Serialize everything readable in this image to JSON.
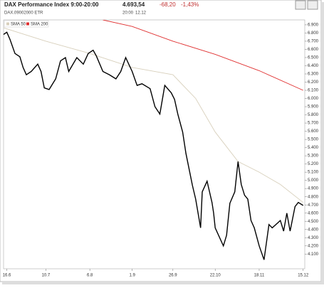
{
  "header": {
    "title": "DAX Performance Index 9:00-20:00",
    "price": "4.693,54",
    "change": "-68,20",
    "change_pct": "-1,43%",
    "symbol": "DAX.09002000 ETR",
    "time": "20:00",
    "date": "12.12"
  },
  "chart_data": {
    "type": "line",
    "xlim": [
      "14.6",
      "16.12"
    ],
    "xticks": [
      "16.6",
      "10.7",
      "6.8",
      "1.9",
      "26.9",
      "22.10",
      "18.11",
      "15.12"
    ],
    "ylim": [
      3920,
      6960
    ],
    "yticks": [
      {
        "value": 4100,
        "label": "4.100"
      },
      {
        "value": 4200,
        "label": "4.200"
      },
      {
        "value": 4300,
        "label": "4.300"
      },
      {
        "value": 4400,
        "label": "4.400"
      },
      {
        "value": 4500,
        "label": "4.500"
      },
      {
        "value": 4600,
        "label": "4.600"
      },
      {
        "value": 4700,
        "label": "4.700"
      },
      {
        "value": 4800,
        "label": "4.800"
      },
      {
        "value": 4900,
        "label": "4.900"
      },
      {
        "value": 5000,
        "label": "5.000"
      },
      {
        "value": 5100,
        "label": "5.100"
      },
      {
        "value": 5200,
        "label": "5.200"
      },
      {
        "value": 5300,
        "label": "5.300"
      },
      {
        "value": 5400,
        "label": "5.400"
      },
      {
        "value": 5500,
        "label": "5.500"
      },
      {
        "value": 5600,
        "label": "5.600"
      },
      {
        "value": 5700,
        "label": "5.700"
      },
      {
        "value": 5800,
        "label": "5.800"
      },
      {
        "value": 5900,
        "label": "5.900"
      },
      {
        "value": 6000,
        "label": "6.000"
      },
      {
        "value": 6100,
        "label": "6.100"
      },
      {
        "value": 6200,
        "label": "6.200"
      },
      {
        "value": 6300,
        "label": "6.300"
      },
      {
        "value": 6400,
        "label": "6.400"
      },
      {
        "value": 6500,
        "label": "6.500"
      },
      {
        "value": 6600,
        "label": "6.600"
      },
      {
        "value": 6700,
        "label": "6.700"
      },
      {
        "value": 6800,
        "label": "6.800"
      },
      {
        "value": 6900,
        "label": "6.900"
      }
    ],
    "grid": false,
    "legend": "top-left",
    "series": [
      {
        "name": "DAX",
        "color": "#000000",
        "x": [
          "13.6",
          "16.6",
          "18.6",
          "21.6",
          "24.6",
          "26.6",
          "28.6",
          "1.7",
          "5.7",
          "7.7",
          "9.7",
          "12.7",
          "16.7",
          "19.7",
          "22.7",
          "24.7",
          "29.7",
          "2.8",
          "5.8",
          "8.8",
          "10.8",
          "14.8",
          "18.8",
          "22.8",
          "25.8",
          "28.8",
          "1.9",
          "4.9",
          "7.9",
          "12.9",
          "15.9",
          "18.9",
          "21.9",
          "25.9",
          "27.9",
          "29.9",
          "2.10",
          "4.10",
          "8.10",
          "10.10",
          "13.10",
          "14.10",
          "17.10",
          "20.10",
          "21.10",
          "22.10",
          "27.10",
          "29.10",
          "31.10",
          "3.11",
          "5.11",
          "7.11",
          "9.11",
          "11.11",
          "13.11",
          "15.11",
          "18.11",
          "21.11",
          "24.11",
          "26.11",
          "1.12",
          "3.12",
          "5.12",
          "7.12",
          "10.12",
          "12.12",
          "15.12"
        ],
        "values": [
          6770,
          6810,
          6720,
          6550,
          6510,
          6380,
          6290,
          6330,
          6420,
          6330,
          6130,
          6110,
          6240,
          6460,
          6500,
          6330,
          6500,
          6420,
          6550,
          6590,
          6520,
          6330,
          6290,
          6240,
          6330,
          6500,
          6330,
          6160,
          6180,
          6120,
          5900,
          5810,
          6160,
          6070,
          5990,
          5810,
          5590,
          5330,
          4940,
          4770,
          4420,
          4860,
          4990,
          4730,
          4600,
          4420,
          4200,
          4330,
          4720,
          4860,
          5230,
          4950,
          4820,
          4770,
          4510,
          4420,
          4200,
          4030,
          4460,
          4420,
          4510,
          4380,
          4600,
          4380,
          4680,
          4730,
          4694
        ]
      },
      {
        "name": "SMA 50",
        "color": "#d8d0bc",
        "x": [
          "13.6",
          "10.7",
          "6.8",
          "1.9",
          "26.9",
          "10.10",
          "22.10",
          "5.11",
          "18.11",
          "1.12",
          "15.12"
        ],
        "values": [
          6870,
          6700,
          6550,
          6380,
          6290,
          6000,
          5590,
          5230,
          5100,
          4950,
          4730
        ]
      },
      {
        "name": "SMA 200",
        "color": "#e03030",
        "x": [
          "14.8",
          "1.9",
          "26.9",
          "22.10",
          "18.11",
          "15.12"
        ],
        "values": [
          6960,
          6880,
          6700,
          6540,
          6340,
          6100
        ]
      }
    ]
  }
}
